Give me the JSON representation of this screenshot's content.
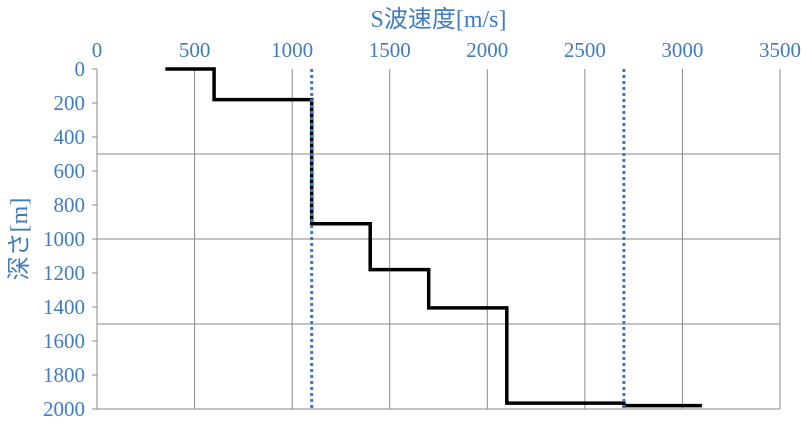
{
  "chart_data": {
    "type": "line",
    "xlabel": "S波速度[m/s]",
    "ylabel": "深さ[m]",
    "xlim": [
      0,
      3500
    ],
    "ylim": [
      0,
      2000
    ],
    "y_inverted": true,
    "x_axis_position": "top",
    "x_ticks": [
      0,
      500,
      1000,
      1500,
      2000,
      2500,
      3000,
      3500
    ],
    "y_ticks": [
      0,
      200,
      400,
      600,
      800,
      1000,
      1200,
      1400,
      1600,
      1800,
      2000
    ],
    "grid": true,
    "series": [
      {
        "style": "solid",
        "color": "#000000",
        "points": [
          [
            350,
            0
          ],
          [
            600,
            0
          ],
          [
            600,
            180
          ],
          [
            1100,
            180
          ],
          [
            1100,
            910
          ],
          [
            1400,
            910
          ],
          [
            1400,
            1180
          ],
          [
            1700,
            1180
          ],
          [
            1700,
            1405
          ],
          [
            2100,
            1405
          ],
          [
            2100,
            1965
          ],
          [
            2700,
            1965
          ],
          [
            2700,
            1980
          ],
          [
            3100,
            1980
          ]
        ]
      },
      {
        "style": "dotted",
        "color": "#3a78d0",
        "points": [
          [
            1100,
            0
          ],
          [
            1100,
            2000
          ]
        ]
      },
      {
        "style": "dotted",
        "color": "#3a78d0",
        "points": [
          [
            2700,
            0
          ],
          [
            2700,
            2000
          ]
        ]
      }
    ]
  }
}
